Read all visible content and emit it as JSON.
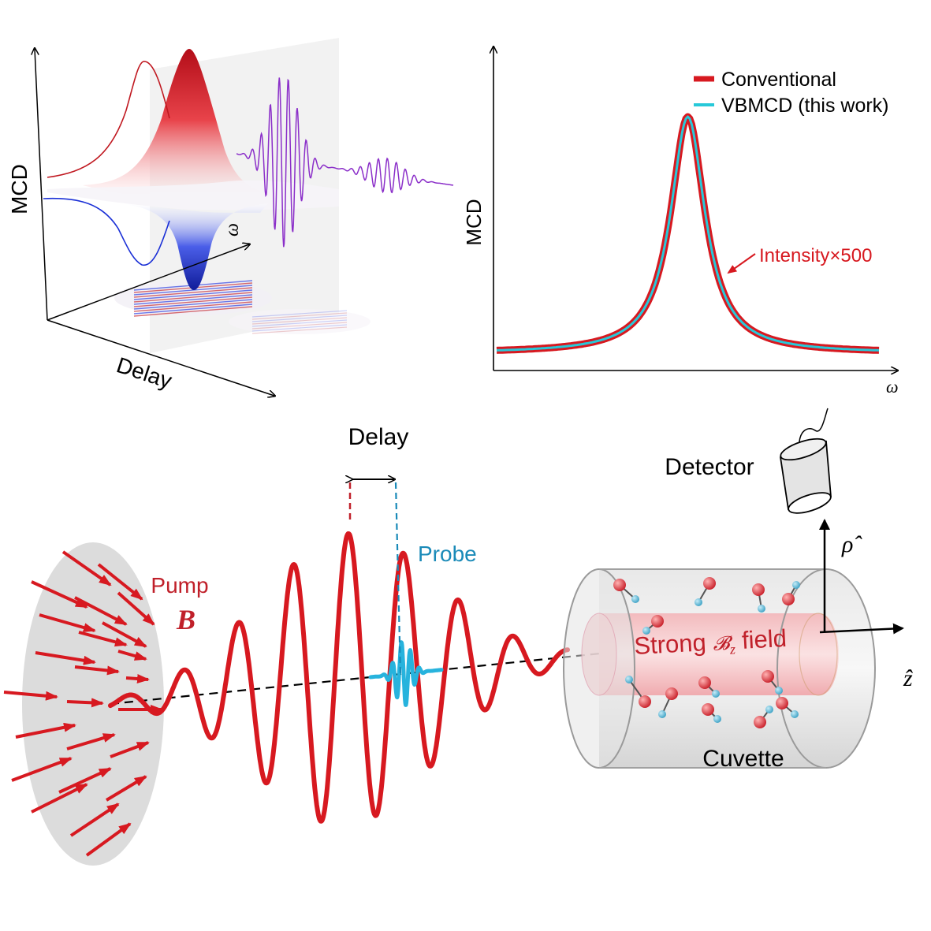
{
  "colors": {
    "red": "#d71920",
    "blue": "#1a2fd6",
    "purple": "#8b2fc9",
    "cyan": "#27c9d9",
    "probe_blue": "#1a8ab8",
    "axis": "#000000"
  },
  "panel_3d": {
    "y_axis_label": "MCD",
    "omega_label": "ω",
    "delay_label": "Delay"
  },
  "panel_2d": {
    "y_axis_label": "MCD",
    "x_axis_label": "ω",
    "legend": [
      {
        "label": "Conventional",
        "color": "#d71920"
      },
      {
        "label": "VBMCD (this work)",
        "color": "#27c9d9"
      }
    ],
    "annotation": "Intensity×500"
  },
  "chart_data": {
    "type": "line",
    "xlabel": "ω",
    "ylabel": "MCD",
    "shape": "lorentzian",
    "x": [
      -5,
      -4,
      -3,
      -2,
      -1.5,
      -1,
      -0.6,
      -0.3,
      0,
      0.3,
      0.6,
      1,
      1.5,
      2,
      3,
      4,
      5
    ],
    "series": [
      {
        "name": "Conventional",
        "values": [
          0.02,
          0.04,
          0.07,
          0.15,
          0.25,
          0.42,
          0.66,
          0.88,
          1.0,
          0.88,
          0.66,
          0.42,
          0.25,
          0.15,
          0.07,
          0.04,
          0.02
        ]
      },
      {
        "name": "VBMCD (this work)",
        "values": [
          0.02,
          0.04,
          0.07,
          0.15,
          0.25,
          0.42,
          0.66,
          0.88,
          1.0,
          0.88,
          0.66,
          0.42,
          0.25,
          0.15,
          0.07,
          0.04,
          0.02
        ]
      }
    ]
  },
  "schematic": {
    "delay_label": "Delay",
    "pump_label": "Pump",
    "pump_field": "B",
    "probe_label": "Probe",
    "detector_label": "Detector",
    "rho_label": "ρ̂",
    "z_label": "ẑ",
    "cuvette_label": "Cuvette",
    "field_text_1": "Strong ",
    "field_symbol": "Bz",
    "field_text_2": " field"
  }
}
